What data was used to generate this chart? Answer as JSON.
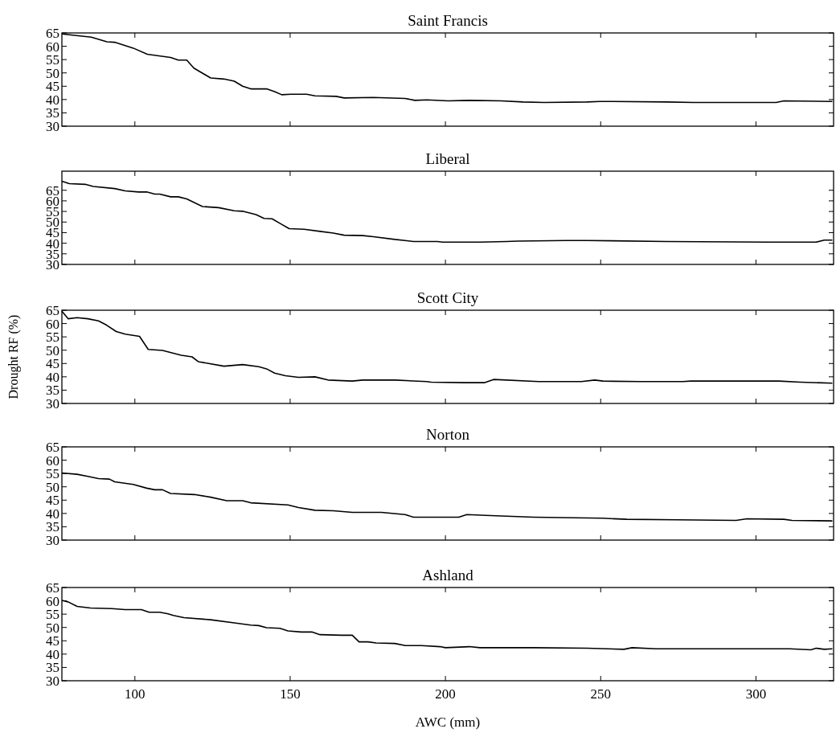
{
  "chart_data": [
    {
      "type": "line",
      "title": "Saint Francis",
      "xlim": [
        76.5,
        325
      ],
      "xticks": [
        100,
        150,
        200,
        250,
        300
      ],
      "ylim": [
        30,
        65
      ],
      "yticks": [
        30,
        35,
        40,
        45,
        50,
        55,
        60,
        65
      ],
      "tick_labels": "y",
      "series": [
        {
          "color": "#000000",
          "x": [
            76.5,
            86,
            91,
            93.5,
            99.5,
            104,
            111.5,
            114,
            116.7,
            119,
            124.4,
            128.7,
            132,
            134.7,
            137.3,
            142.4,
            145,
            147.3,
            150.2,
            155.3,
            158,
            164.8,
            167.4,
            176.8,
            187,
            190.2,
            194,
            200.9,
            207.7,
            218,
            225,
            231.8,
            245.5,
            249.8,
            271.3,
            279.9,
            306.5,
            309,
            324.6
          ],
          "values": [
            64.6,
            63.4,
            61.7,
            61.5,
            59.3,
            57,
            55.8,
            54.8,
            54.8,
            51.8,
            48.1,
            47.7,
            46.9,
            45,
            44,
            44,
            43,
            41.8,
            42,
            42,
            41.4,
            41.2,
            40.6,
            40.8,
            40.4,
            39.7,
            39.9,
            39.5,
            39.7,
            39.5,
            39.1,
            38.9,
            39.1,
            39.3,
            39.1,
            38.9,
            38.9,
            39.5,
            39.3
          ]
        }
      ]
    },
    {
      "type": "line",
      "title": "Liberal",
      "xlim": [
        76.5,
        325
      ],
      "xticks": [
        100,
        150,
        200,
        250,
        300
      ],
      "ylim": [
        30,
        74
      ],
      "yticks": [
        30,
        35,
        40,
        45,
        50,
        55,
        60,
        65
      ],
      "tick_labels": "y",
      "series": [
        {
          "color": "#000000",
          "x": [
            76.5,
            78.9,
            84,
            86.6,
            93.5,
            96.9,
            101.2,
            103.8,
            106.4,
            108,
            111.5,
            114,
            116.7,
            121.8,
            127,
            132,
            134.7,
            139,
            141.6,
            144.2,
            146.7,
            149.7,
            154.5,
            159.6,
            163.9,
            167.4,
            173.4,
            176.8,
            183.7,
            187,
            189.7,
            197.4,
            199.1,
            211.1,
            219.7,
            223.2,
            238.7,
            245.5,
            271.3,
            303.9,
            319.3,
            322,
            324.6
          ],
          "values": [
            69.3,
            68.1,
            67.8,
            66.8,
            65.8,
            64.7,
            64.2,
            64.2,
            63.2,
            63.2,
            61.9,
            61.9,
            60.9,
            57.3,
            56.8,
            55.3,
            55.1,
            53.5,
            51.7,
            51.5,
            49.4,
            46.9,
            46.6,
            45.6,
            44.8,
            43.8,
            43.6,
            43.1,
            41.8,
            41.3,
            40.8,
            40.8,
            40.5,
            40.5,
            40.8,
            41,
            41.3,
            41.3,
            40.8,
            40.5,
            40.5,
            41.5,
            41.5
          ]
        }
      ]
    },
    {
      "type": "line",
      "title": "Scott City",
      "ylabel": "Drought RF (%)",
      "xlim": [
        76.5,
        325
      ],
      "xticks": [
        100,
        150,
        200,
        250,
        300
      ],
      "ylim": [
        30,
        65
      ],
      "yticks": [
        30,
        35,
        40,
        45,
        50,
        55,
        60,
        65
      ],
      "tick_labels": "y",
      "series": [
        {
          "color": "#000000",
          "x": [
            76.5,
            78.5,
            81.4,
            84.9,
            88.3,
            90.9,
            94,
            96.9,
            101.5,
            104.3,
            108.9,
            114.9,
            118.4,
            120.4,
            128.7,
            134.7,
            139.9,
            142.4,
            145,
            148.5,
            152.7,
            158,
            162.2,
            170,
            173.4,
            183.7,
            194,
            195.4,
            206,
            212.5,
            215.5,
            230,
            243.8,
            248.1,
            250.7,
            262.7,
            276.5,
            279,
            307.4,
            314.3,
            324.6
          ],
          "values": [
            64.6,
            61.8,
            62.2,
            61.8,
            61,
            59.4,
            57,
            56,
            55.2,
            50.3,
            49.9,
            48.1,
            47.5,
            45.7,
            44,
            44.6,
            43.8,
            43,
            41.4,
            40.4,
            39.8,
            40,
            38.8,
            38.4,
            38.8,
            38.8,
            38.2,
            38,
            37.8,
            37.8,
            39,
            38.2,
            38.2,
            38.8,
            38.4,
            38.2,
            38.2,
            38.4,
            38.4,
            38,
            37.6
          ]
        }
      ]
    },
    {
      "type": "line",
      "title": "Norton",
      "xlim": [
        76.5,
        325
      ],
      "xticks": [
        100,
        150,
        200,
        250,
        300
      ],
      "ylim": [
        30,
        65
      ],
      "yticks": [
        30,
        35,
        40,
        45,
        50,
        55,
        60,
        65
      ],
      "tick_labels": "y",
      "series": [
        {
          "color": "#000000",
          "x": [
            76.5,
            81.4,
            84.9,
            88.3,
            91.8,
            93.5,
            99.5,
            103.8,
            106.4,
            108.9,
            111.5,
            119.2,
            124.4,
            129.6,
            134.7,
            137.3,
            149.3,
            152.7,
            158,
            163.9,
            170,
            179.4,
            187,
            189.7,
            204.3,
            206.9,
            214.6,
            228.4,
            250.7,
            258.4,
            274.7,
            293.6,
            297.1,
            309,
            311.6,
            324.6
          ],
          "values": [
            55.2,
            54.7,
            53.9,
            53.1,
            52.9,
            51.9,
            50.9,
            49.5,
            48.9,
            48.9,
            47.5,
            47.1,
            46.1,
            44.8,
            44.8,
            44,
            43.2,
            42.2,
            41.2,
            41,
            40.4,
            40.4,
            39.6,
            38.6,
            38.6,
            39.6,
            39.2,
            38.6,
            38.2,
            37.8,
            37.6,
            37.4,
            38,
            37.8,
            37.4,
            37.2
          ]
        }
      ]
    },
    {
      "type": "line",
      "title": "Ashland",
      "xlabel": "AWC (mm)",
      "xlim": [
        76.5,
        325
      ],
      "xticks": [
        100,
        150,
        200,
        250,
        300
      ],
      "ylim": [
        30,
        65
      ],
      "yticks": [
        30,
        35,
        40,
        45,
        50,
        55,
        60,
        65
      ],
      "series": [
        {
          "color": "#000000",
          "x": [
            76.5,
            78.5,
            81.4,
            85.7,
            92.6,
            96.9,
            102.1,
            104.6,
            108,
            110.7,
            112.4,
            115.8,
            124.4,
            132,
            137.3,
            139.9,
            142.4,
            146.7,
            149.3,
            153.6,
            157,
            159.6,
            166.5,
            170,
            172.2,
            175.1,
            177.7,
            183.7,
            187.1,
            192.3,
            198.3,
            200,
            207.7,
            211.1,
            228.4,
            245.5,
            257.5,
            260.1,
            267.9,
            279.9,
            310.8,
            317.7,
            319.4,
            322,
            324.6
          ],
          "values": [
            60.2,
            59.6,
            57.9,
            57.3,
            57.1,
            56.7,
            56.7,
            55.7,
            55.7,
            55.1,
            54.5,
            53.7,
            52.9,
            51.7,
            50.9,
            50.7,
            49.9,
            49.7,
            48.7,
            48.3,
            48.3,
            47.3,
            47.1,
            47.1,
            44.6,
            44.6,
            44.2,
            44,
            43.2,
            43.2,
            42.8,
            42.4,
            42.8,
            42.4,
            42.4,
            42.2,
            41.8,
            42.4,
            42,
            42,
            42,
            41.6,
            42.2,
            41.8,
            42
          ]
        }
      ]
    }
  ]
}
